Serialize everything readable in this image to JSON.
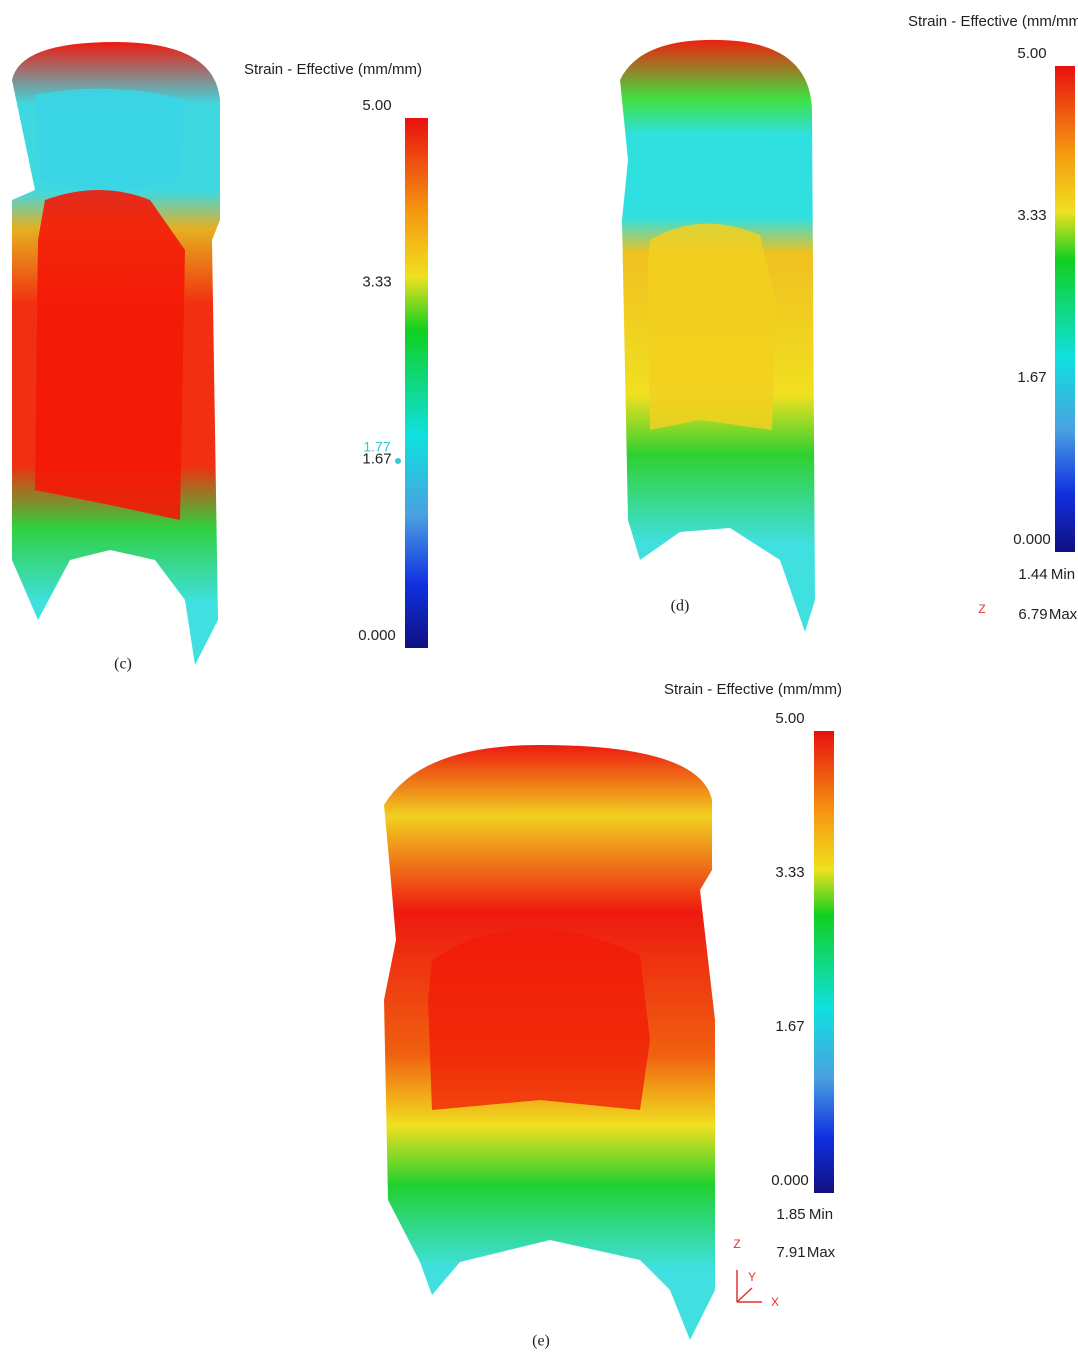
{
  "panels": [
    {
      "label": "(c)",
      "legend_title": "Strain - Effective (mm/mm)",
      "ticks": [
        "5.00",
        "3.33",
        "1.67",
        "0.000"
      ],
      "marker_label": "1.77"
    },
    {
      "label": "(d)",
      "legend_title": "Strain - Effective (mm/mm)",
      "ticks": [
        "5.00",
        "3.33",
        "1.67",
        "0.000"
      ],
      "min": "1.44",
      "min_label": "Min",
      "max": "6.79",
      "max_label": "Max",
      "axes": [
        "Z"
      ]
    },
    {
      "label": "(e)",
      "legend_title": "Strain - Effective (mm/mm)",
      "ticks": [
        "5.00",
        "3.33",
        "1.67",
        "0.000"
      ],
      "min": "1.85",
      "min_label": "Min",
      "max": "7.91",
      "max_label": "Max",
      "axes": [
        "Z",
        "Y",
        "X"
      ]
    }
  ]
}
